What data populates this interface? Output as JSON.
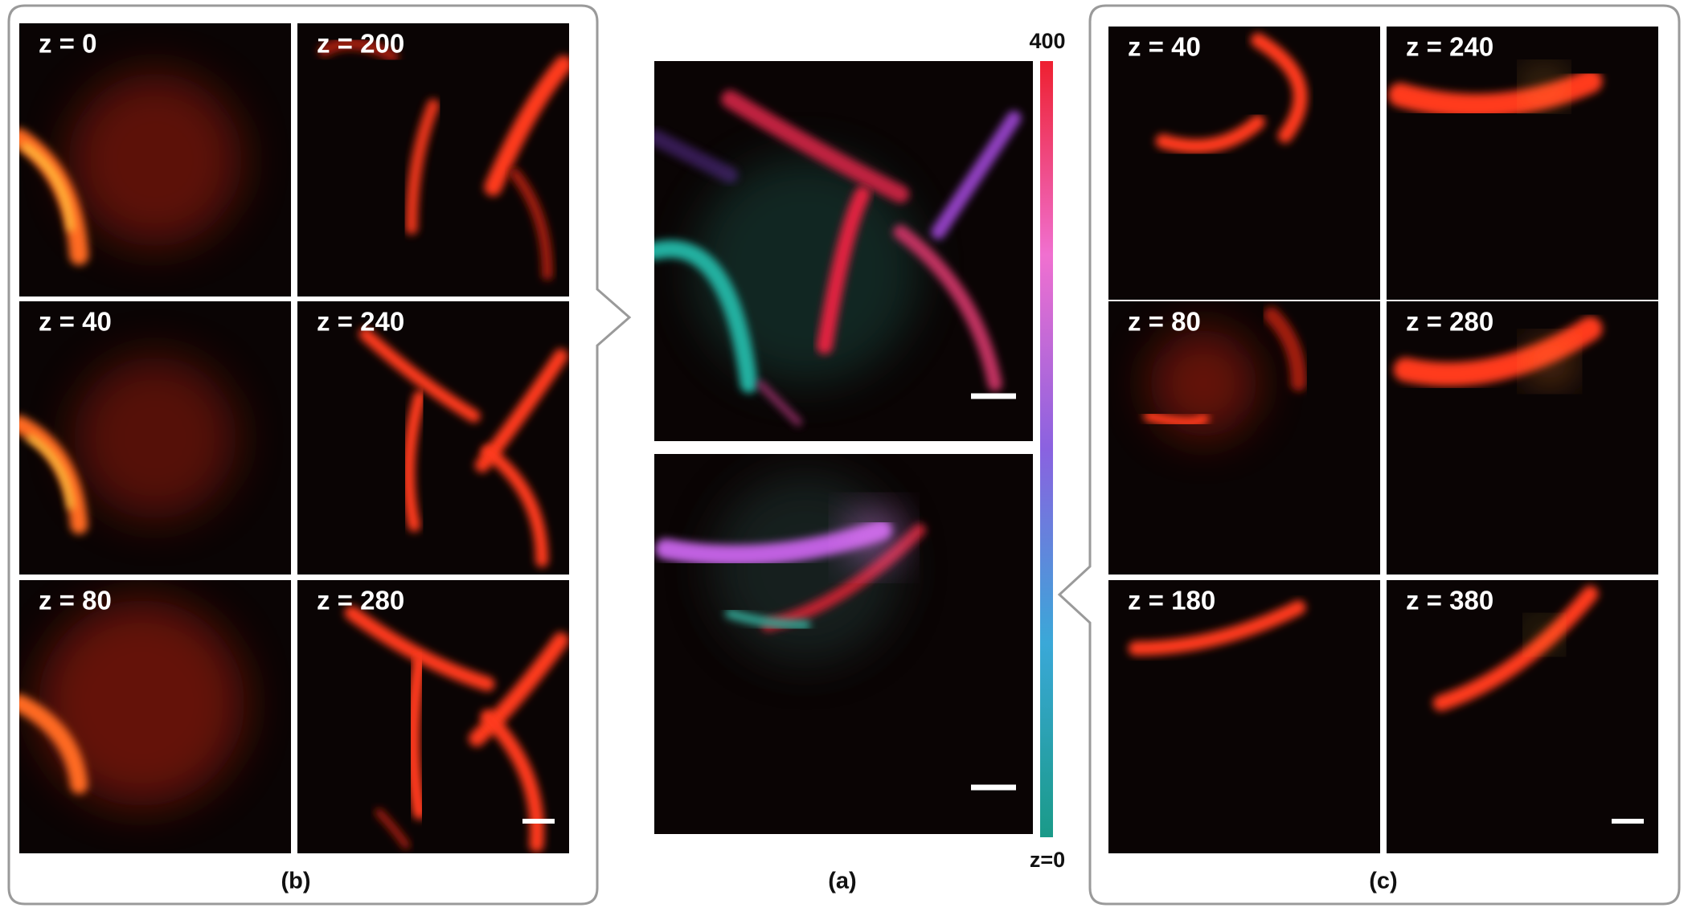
{
  "panels": {
    "b": {
      "label": "(b)",
      "tiles": [
        "z = 0",
        "z = 200",
        "z = 40",
        "z = 240",
        "z = 80",
        "z = 280"
      ]
    },
    "a": {
      "label": "(a)",
      "colorbar": {
        "top": "400",
        "bottom": "z=0"
      }
    },
    "c": {
      "label": "(c)",
      "tiles": [
        "z = 40",
        "z = 240",
        "z = 80",
        "z = 280",
        "z = 180",
        "z = 380"
      ]
    }
  }
}
